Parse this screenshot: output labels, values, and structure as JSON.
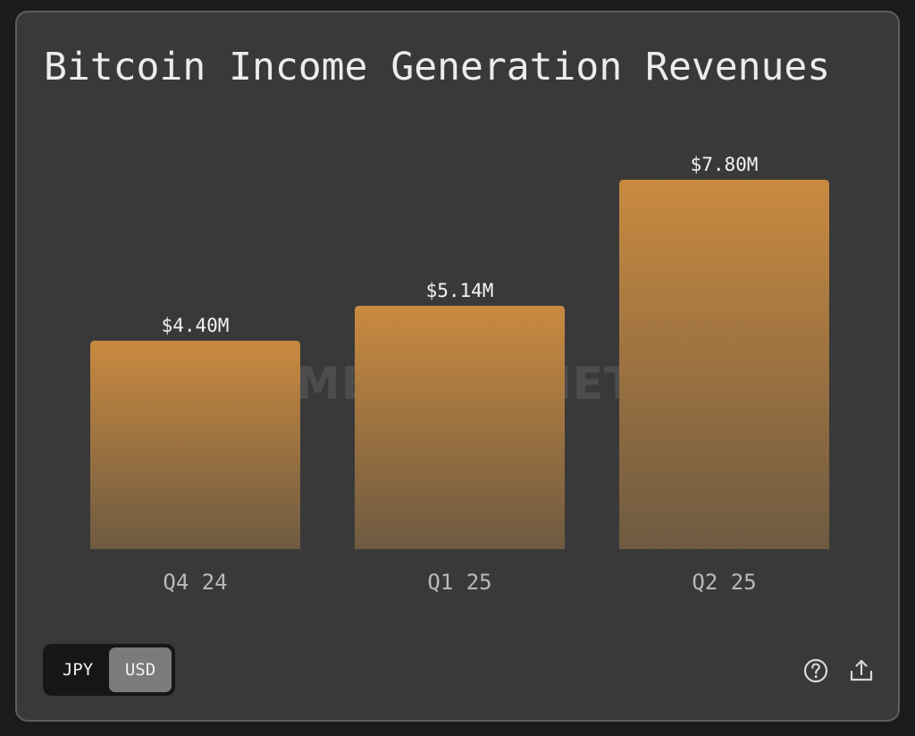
{
  "title": "Bitcoin Income Generation Revenues",
  "watermark": "METAPLANET",
  "currency_toggle": {
    "options": [
      "JPY",
      "USD"
    ],
    "selected": "USD"
  },
  "icons": {
    "help": "help-circle-icon",
    "share": "share-upload-icon"
  },
  "colors": {
    "bar_top": "#c98a40",
    "bar_bottom": "#6e5a41",
    "background": "#393939"
  },
  "chart_data": {
    "type": "bar",
    "title": "Bitcoin Income Generation Revenues",
    "categories": [
      "Q4 24",
      "Q1 25",
      "Q2 25"
    ],
    "values": [
      4.4,
      5.14,
      7.8
    ],
    "data_labels": [
      "$4.40M",
      "$5.14M",
      "$7.80M"
    ],
    "unit": "USD millions",
    "ylim": [
      0,
      7.8
    ],
    "grid": false,
    "legend": "none"
  }
}
